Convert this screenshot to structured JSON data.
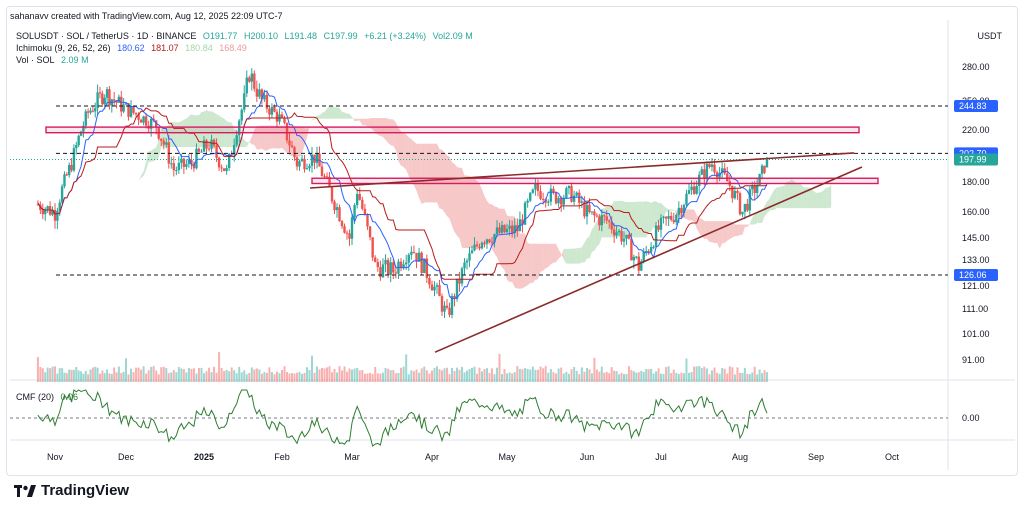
{
  "header": {
    "text": "sahanavv created with TradingView.com, Aug 12, 2025 22:09 UTC-7"
  },
  "legend": {
    "symbol": "SOLUSDT · SOL / TetherUS · 1D · BINANCE",
    "open": "O191.77",
    "high": "H200.10",
    "low": "L191.48",
    "close": "C197.99",
    "change": "+6.21 (+3.24%)",
    "volume": "Vol2.09 M",
    "ichimoku_label": "Ichimoku (9, 26, 52, 26)",
    "ichimoku_values": [
      "180.62",
      "181.07",
      "180.84",
      "168.49"
    ],
    "ichimoku_colors": [
      "#2962ff",
      "#b71c1c",
      "#a5d6a7",
      "#ef9a9a"
    ],
    "vol_label": "Vol · SOL",
    "vol_value": "2.09 M",
    "cmf_label": "CMF (20)",
    "cmf_value": "0.06"
  },
  "price_axis_title": "USDT",
  "brand": {
    "name": "TradingView"
  },
  "colors": {
    "up": "#26a69a",
    "down": "#ef5350",
    "tenkan": "#2962ff",
    "kijun": "#b71c1c",
    "cloud_green": "#a5d6a7",
    "cloud_red": "#ef9a9a",
    "trendline": "#8b2a2a",
    "zone": "#d81b60",
    "axis_badge": "#2962ff",
    "last_price": "#26a69a",
    "cmf_line": "#2e7d32"
  },
  "chart_data": {
    "type": "candlestick",
    "symbol": "SOLUSDT",
    "timeframe": "1D",
    "x_axis_labels": [
      "Nov",
      "Dec",
      "2025",
      "Feb",
      "Mar",
      "Apr",
      "May",
      "Jun",
      "Jul",
      "Aug",
      "Sep",
      "Oct"
    ],
    "y_axis_ticks": [
      280.0,
      250.0,
      220.0,
      200.0,
      180.0,
      160.0,
      145.0,
      133.0,
      121.0,
      111.0,
      101.0,
      91.0
    ],
    "price_badges": [
      {
        "label": "244.83",
        "value": 244.83,
        "kind": "level"
      },
      {
        "label": "202.70",
        "value": 202.7,
        "kind": "level"
      },
      {
        "label": "197.99",
        "value": 197.99,
        "kind": "last"
      },
      {
        "label": "126.06",
        "value": 126.06,
        "kind": "level"
      }
    ],
    "horizontal_levels": [
      244.83,
      202.7,
      126.06
    ],
    "zones": [
      {
        "from": "Nov",
        "to": "Sep",
        "low": 218,
        "high": 223
      },
      {
        "from": "Feb",
        "to": "Sep",
        "low": 179,
        "high": 183
      }
    ],
    "trendlines": [
      {
        "from": [
          "Feb",
          176
        ],
        "to": [
          "Sep",
          203
        ]
      },
      {
        "from": [
          "Apr",
          94
        ],
        "to": [
          "Sep",
          192
        ]
      }
    ],
    "close_path": [
      [
        "2024-10-25",
        165
      ],
      [
        "2024-11-01",
        160
      ],
      [
        "2024-11-08",
        195
      ],
      [
        "2024-11-15",
        238
      ],
      [
        "2024-11-22",
        258
      ],
      [
        "2024-11-29",
        245
      ],
      [
        "2024-12-06",
        235
      ],
      [
        "2024-12-13",
        225
      ],
      [
        "2024-12-20",
        190
      ],
      [
        "2024-12-27",
        195
      ],
      [
        "2025-01-03",
        210
      ],
      [
        "2025-01-10",
        188
      ],
      [
        "2025-01-17",
        250
      ],
      [
        "2025-01-19",
        275
      ],
      [
        "2025-01-24",
        250
      ],
      [
        "2025-01-31",
        232
      ],
      [
        "2025-02-07",
        195
      ],
      [
        "2025-02-14",
        200
      ],
      [
        "2025-02-21",
        170
      ],
      [
        "2025-02-28",
        145
      ],
      [
        "2025-03-03",
        175
      ],
      [
        "2025-03-10",
        130
      ],
      [
        "2025-03-17",
        128
      ],
      [
        "2025-03-24",
        140
      ],
      [
        "2025-03-31",
        125
      ],
      [
        "2025-04-07",
        108
      ],
      [
        "2025-04-14",
        130
      ],
      [
        "2025-04-21",
        145
      ],
      [
        "2025-04-28",
        148
      ],
      [
        "2025-05-05",
        150
      ],
      [
        "2025-05-12",
        175
      ],
      [
        "2025-05-19",
        170
      ],
      [
        "2025-05-26",
        172
      ],
      [
        "2025-06-02",
        158
      ],
      [
        "2025-06-09",
        155
      ],
      [
        "2025-06-16",
        145
      ],
      [
        "2025-06-22",
        130
      ],
      [
        "2025-06-30",
        150
      ],
      [
        "2025-07-07",
        160
      ],
      [
        "2025-07-14",
        178
      ],
      [
        "2025-07-21",
        195
      ],
      [
        "2025-07-28",
        178
      ],
      [
        "2025-08-02",
        160
      ],
      [
        "2025-08-09",
        182
      ],
      [
        "2025-08-12",
        197.99
      ]
    ],
    "cmf": {
      "label": "CMF (20)",
      "last": 0.06,
      "ticks": [
        0.0
      ]
    }
  }
}
